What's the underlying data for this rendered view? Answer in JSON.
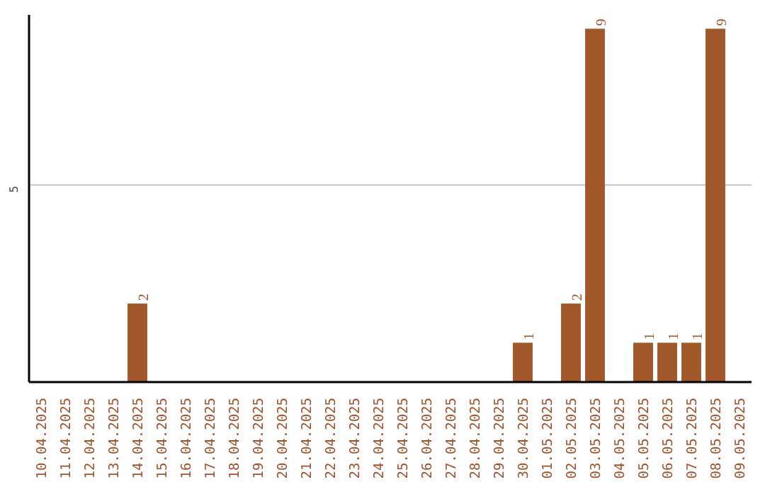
{
  "chart_data": {
    "type": "bar",
    "categories": [
      "10.04.2025",
      "11.04.2025",
      "12.04.2025",
      "13.04.2025",
      "14.04.2025",
      "15.04.2025",
      "16.04.2025",
      "17.04.2025",
      "18.04.2025",
      "19.04.2025",
      "20.04.2025",
      "21.04.2025",
      "22.04.2025",
      "23.04.2025",
      "24.04.2025",
      "25.04.2025",
      "26.04.2025",
      "27.04.2025",
      "28.04.2025",
      "29.04.2025",
      "30.04.2025",
      "01.05.2025",
      "02.05.2025",
      "03.05.2025",
      "04.05.2025",
      "05.05.2025",
      "06.05.2025",
      "07.05.2025",
      "08.05.2025",
      "09.05.2025"
    ],
    "values": [
      0,
      0,
      0,
      0,
      2,
      0,
      0,
      0,
      0,
      0,
      0,
      0,
      0,
      0,
      0,
      0,
      0,
      0,
      0,
      0,
      1,
      0,
      2,
      9,
      0,
      1,
      1,
      1,
      9,
      0
    ],
    "value_labels": [
      null,
      null,
      null,
      null,
      "2",
      null,
      null,
      null,
      null,
      null,
      null,
      null,
      null,
      null,
      null,
      null,
      null,
      null,
      null,
      null,
      "1",
      null,
      "2",
      "9",
      null,
      "1",
      "1",
      "1",
      "9",
      null
    ],
    "color": "#a0582a",
    "ylim": [
      0,
      9.35
    ],
    "yticks": [
      5
    ],
    "grid": "y"
  }
}
